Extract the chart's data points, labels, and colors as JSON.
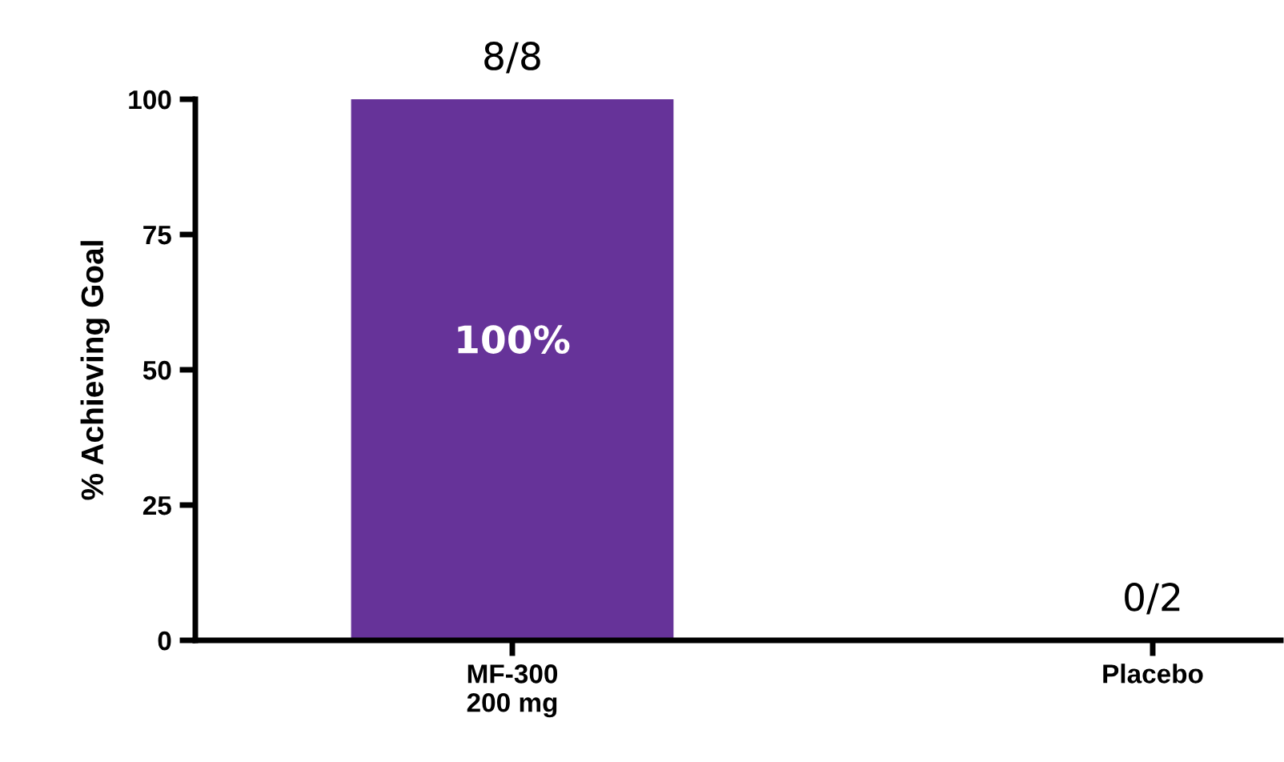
{
  "chart_data": {
    "type": "bar",
    "ylabel": "% Achieving Goal",
    "categories": [
      "MF-300\n200 mg",
      "Placebo"
    ],
    "values": [
      100,
      0
    ],
    "color": "#663399",
    "value_labels": [
      "100%",
      null
    ],
    "annotations": [
      {
        "text": "8/8",
        "x": "MF-300\n200 mg",
        "y": 100
      },
      {
        "text": "0/2",
        "x": "Placebo",
        "y": 0
      }
    ],
    "ylim": [
      0,
      100
    ],
    "yticks": [
      0,
      25,
      50,
      75,
      100
    ],
    "grid": false
  }
}
